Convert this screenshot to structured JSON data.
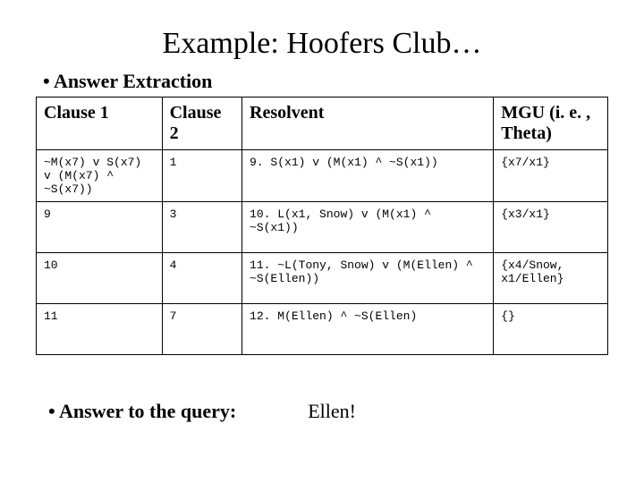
{
  "title": "Example: Hoofers Club…",
  "subtitle": "Answer Extraction",
  "table": {
    "headers": {
      "c1": "Clause 1",
      "c2": "Clause 2",
      "res": "Resolvent",
      "mgu": "MGU (i. e. , Theta)"
    },
    "rows": [
      {
        "c1": "~M(x7) v S(x7) v (M(x7) ^ ~S(x7))",
        "c2": "1",
        "res": "9. S(x1) v (M(x1) ^ ~S(x1))",
        "mgu": "{x7/x1}"
      },
      {
        "c1": "9",
        "c2": "3",
        "res": "10. L(x1, Snow) v (M(x1) ^ ~S(x1))",
        "mgu": "{x3/x1}"
      },
      {
        "c1": "10",
        "c2": "4",
        "res": "11. ~L(Tony, Snow) v (M(Ellen) ^ ~S(Ellen))",
        "mgu": "{x4/Snow, x1/Ellen}"
      },
      {
        "c1": "11",
        "c2": "7",
        "res": "12. M(Ellen) ^ ~S(Ellen)",
        "mgu": "{}"
      }
    ]
  },
  "footer": {
    "label": "Answer to the query:",
    "answer": "Ellen!"
  }
}
